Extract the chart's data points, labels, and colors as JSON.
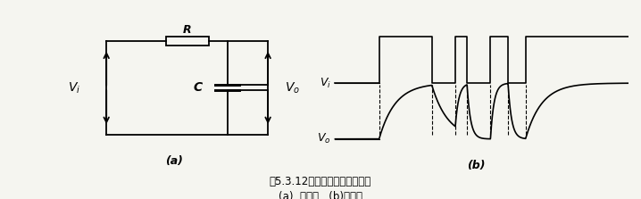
{
  "background_color": "#f5f5f0",
  "title_line1": "图5.3.12利用滤波电路消除冒险",
  "title_line2": "(a)  积分器   (b)波形图",
  "label_a": "(a)",
  "label_b": "(b)",
  "circuit_label_Vi": "$\\boldsymbol{V_i}$",
  "circuit_label_C": "$\\boldsymbol{C}$",
  "circuit_label_Vo": "$\\boldsymbol{V_o}$",
  "circuit_label_R": "$\\boldsymbol{R}$",
  "waveform_label_Vi": "$\\boldsymbol{V_i}$",
  "waveform_label_Vo": "$\\boldsymbol{V_o}$"
}
